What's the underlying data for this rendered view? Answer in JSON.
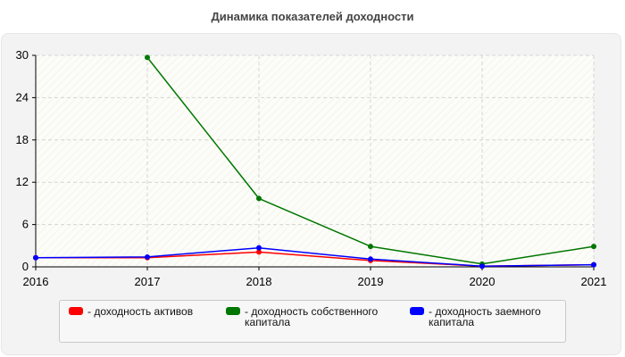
{
  "chart_data": {
    "type": "line",
    "title": "Динамика показателей доходности",
    "xlabel": "",
    "ylabel": "",
    "x": [
      "2016",
      "2017",
      "2018",
      "2019",
      "2020",
      "2021"
    ],
    "ylim": [
      0,
      30
    ],
    "yticks": [
      0,
      6,
      12,
      18,
      24,
      30
    ],
    "grid": true,
    "legend_position": "bottom",
    "series": [
      {
        "name": "- доходность активов",
        "color": "#ff0000",
        "values": [
          1.3,
          1.3,
          2.1,
          0.9,
          0.1,
          0.3
        ]
      },
      {
        "name": "- доходность собственного капитала",
        "color": "#007700",
        "values": [
          null,
          29.7,
          9.7,
          2.9,
          0.4,
          2.9
        ]
      },
      {
        "name": "- доходность заемного капитала",
        "color": "#0000ff",
        "values": [
          1.3,
          1.4,
          2.7,
          1.1,
          0.1,
          0.3
        ]
      }
    ]
  }
}
